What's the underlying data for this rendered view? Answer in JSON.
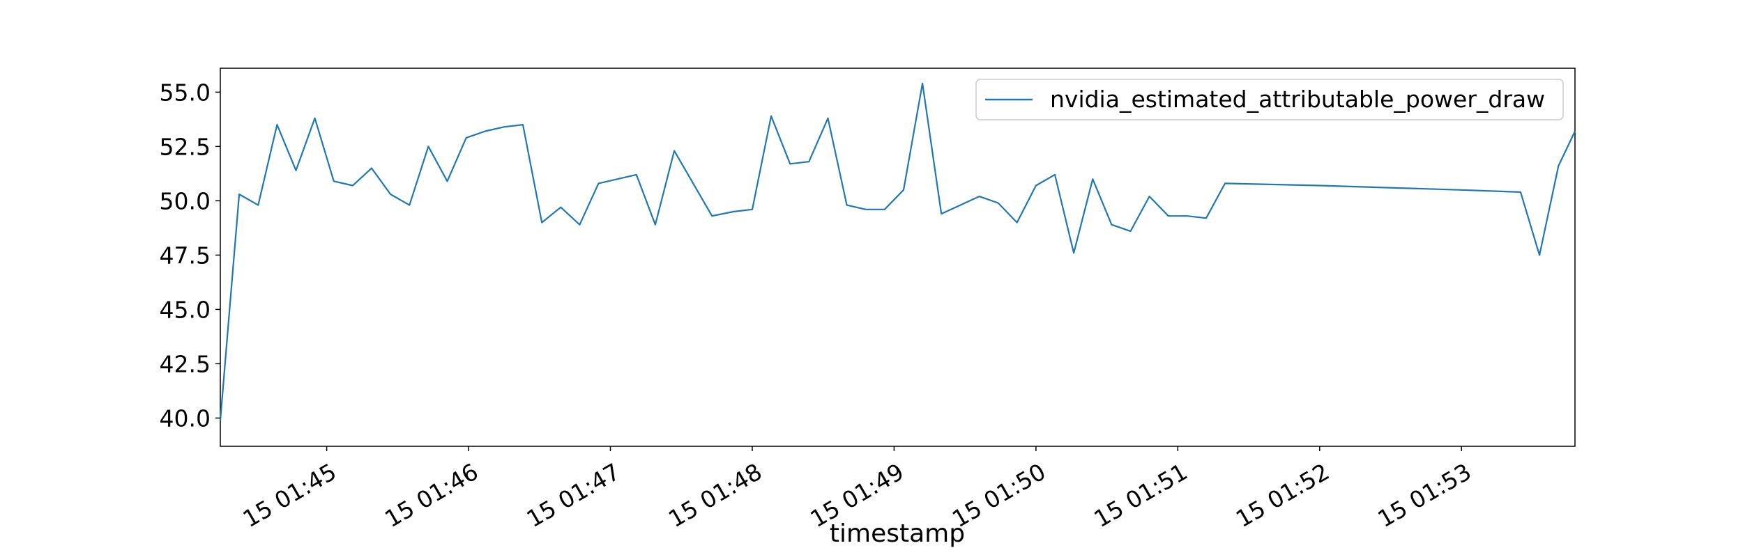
{
  "chart_data": {
    "type": "line",
    "title": "",
    "xlabel": "timestamp",
    "ylabel": "",
    "x_ticks": [
      {
        "t": "01:45:00",
        "label": "15 01:45"
      },
      {
        "t": "01:46:00",
        "label": "15 01:46"
      },
      {
        "t": "01:47:00",
        "label": "15 01:47"
      },
      {
        "t": "01:48:00",
        "label": "15 01:48"
      },
      {
        "t": "01:49:00",
        "label": "15 01:49"
      },
      {
        "t": "01:50:00",
        "label": "15 01:50"
      },
      {
        "t": "01:51:00",
        "label": "15 01:51"
      },
      {
        "t": "01:52:00",
        "label": "15 01:52"
      },
      {
        "t": "01:53:00",
        "label": "15 01:53"
      }
    ],
    "y_ticks": [
      "40.0",
      "42.5",
      "45.0",
      "47.5",
      "50.0",
      "52.5",
      "55.0"
    ],
    "xlim": [
      "01:44:15",
      "01:53:48"
    ],
    "ylim": [
      38.7,
      56.1
    ],
    "grid": false,
    "legend_position": "upper right",
    "series": [
      {
        "name": "nvidia_estimated_attributable_power_draw",
        "color": "#1f77b4",
        "x": [
          "01:44:15",
          "01:44:23",
          "01:44:31",
          "01:44:39",
          "01:44:47",
          "01:44:55",
          "01:45:03",
          "01:45:11",
          "01:45:19",
          "01:45:27",
          "01:45:35",
          "01:45:43",
          "01:45:51",
          "01:45:59",
          "01:46:07",
          "01:46:15",
          "01:46:23",
          "01:46:31",
          "01:46:39",
          "01:46:47",
          "01:46:55",
          "01:47:03",
          "01:47:11",
          "01:47:19",
          "01:47:27",
          "01:47:35",
          "01:47:43",
          "01:47:52",
          "01:48:00",
          "01:48:08",
          "01:48:16",
          "01:48:24",
          "01:48:32",
          "01:48:40",
          "01:48:48",
          "01:48:56",
          "01:49:04",
          "01:49:12",
          "01:49:20",
          "01:49:28",
          "01:49:36",
          "01:49:44",
          "01:49:52",
          "01:50:00",
          "01:50:08",
          "01:50:16",
          "01:50:24",
          "01:50:32",
          "01:50:40",
          "01:50:48",
          "01:50:56",
          "01:51:04",
          "01:51:12",
          "01:51:20",
          "01:52:00",
          "01:53:00",
          "01:53:25",
          "01:53:33",
          "01:53:41",
          "01:53:48"
        ],
        "y": [
          39.9,
          50.3,
          49.8,
          53.5,
          51.4,
          53.8,
          50.9,
          50.7,
          51.5,
          50.3,
          49.8,
          52.5,
          50.9,
          52.9,
          53.2,
          53.4,
          53.5,
          49.0,
          49.7,
          48.9,
          50.8,
          51.0,
          51.2,
          48.9,
          52.3,
          50.8,
          49.3,
          49.5,
          49.6,
          53.9,
          51.7,
          51.8,
          53.8,
          49.8,
          49.6,
          49.6,
          50.5,
          55.4,
          49.4,
          49.8,
          50.2,
          49.9,
          49.0,
          50.7,
          51.2,
          47.6,
          51.0,
          48.9,
          48.6,
          50.2,
          49.3,
          49.3,
          49.2,
          50.8,
          50.7,
          50.5,
          50.4,
          47.5,
          51.6,
          53.2
        ]
      }
    ]
  }
}
